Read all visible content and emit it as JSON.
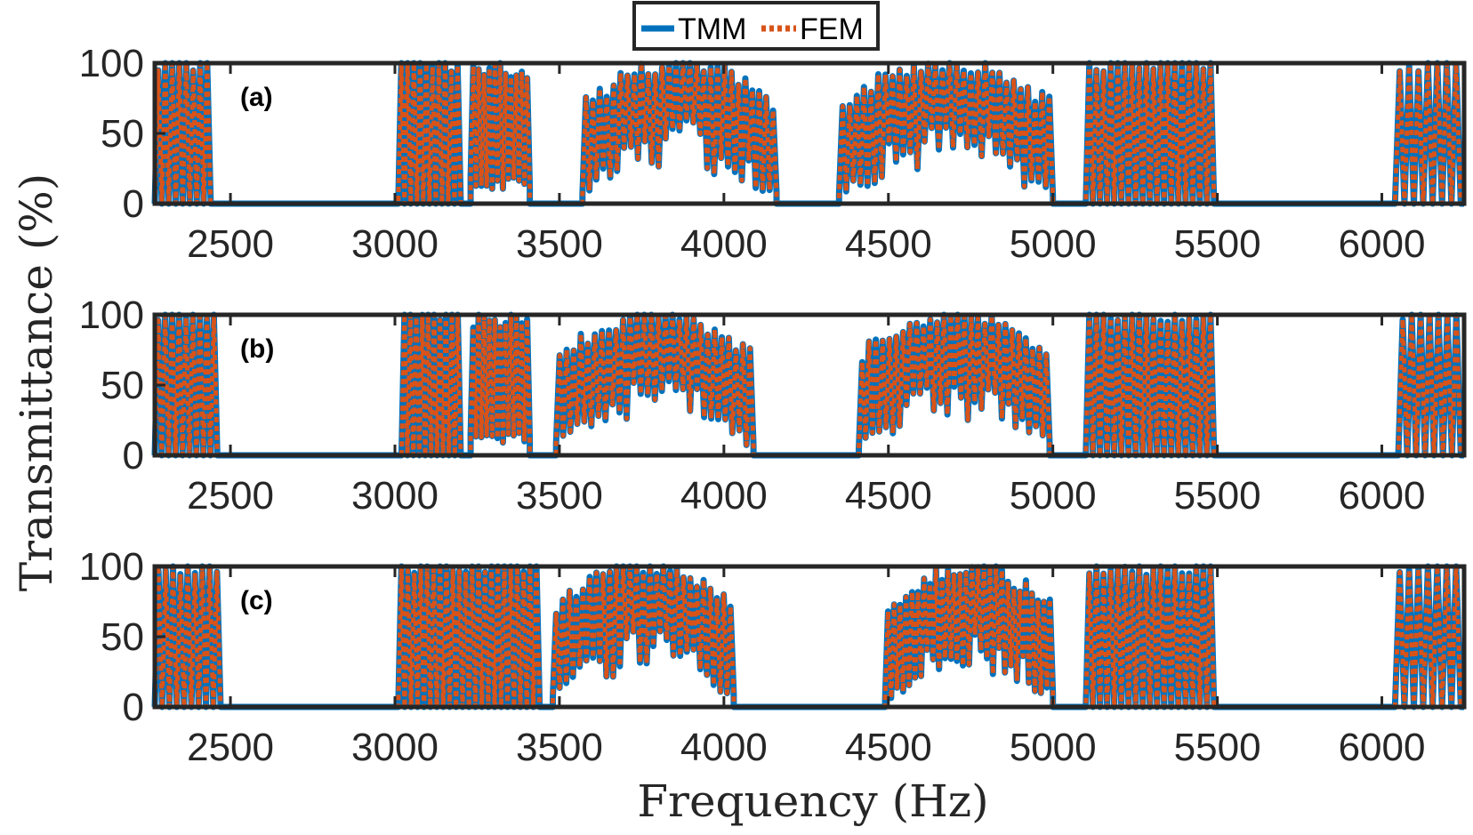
{
  "chart_data": {
    "type": "line",
    "xlabel": "Frequency (Hz)",
    "ylabel": "Transmittance (%)",
    "xlim": [
      2270,
      6250
    ],
    "ylim": [
      0,
      100
    ],
    "xticks": [
      2500,
      3000,
      3500,
      4000,
      4500,
      5000,
      5500,
      6000
    ],
    "yticks": [
      0,
      50,
      100
    ],
    "grid": false,
    "legend": {
      "placement": "top-center",
      "entries": [
        "TMM",
        "FEM"
      ]
    },
    "colors": {
      "TMM": "#0072BD",
      "FEM": "#D95319",
      "frame": "#262626"
    },
    "panels": [
      {
        "label": "(a)",
        "passbands": [
          {
            "x": [
              2270,
              2440
            ],
            "n": 8,
            "lo": 0,
            "hi": 100
          },
          {
            "x": [
              3010,
              3200
            ],
            "n": 10,
            "lo": 0,
            "hi": 100
          },
          {
            "x": [
              3230,
              3410
            ],
            "n": 11,
            "lo": 20,
            "hi": 95
          },
          {
            "x": [
              3570,
              4160
            ],
            "n": 28,
            "lo": 10,
            "hi": 100,
            "dome": true
          },
          {
            "x": [
              4350,
              5000
            ],
            "n": 30,
            "lo": 10,
            "hi": 100,
            "dome": true
          },
          {
            "x": [
              5100,
              5490
            ],
            "n": 18,
            "lo": 0,
            "hi": 100
          },
          {
            "x": [
              6040,
              6240
            ],
            "n": 7,
            "lo": 0,
            "hi": 100
          }
        ]
      },
      {
        "label": "(b)",
        "passbands": [
          {
            "x": [
              2270,
              2460
            ],
            "n": 9,
            "lo": 0,
            "hi": 100
          },
          {
            "x": [
              3020,
              3200
            ],
            "n": 10,
            "lo": 0,
            "hi": 100
          },
          {
            "x": [
              3230,
              3410
            ],
            "n": 11,
            "lo": 20,
            "hi": 95
          },
          {
            "x": [
              3490,
              4090
            ],
            "n": 28,
            "lo": 10,
            "hi": 100,
            "dome": true
          },
          {
            "x": [
              4410,
              4990
            ],
            "n": 28,
            "lo": 10,
            "hi": 100,
            "dome": true
          },
          {
            "x": [
              5100,
              5490
            ],
            "n": 18,
            "lo": 0,
            "hi": 100
          },
          {
            "x": [
              6050,
              6240
            ],
            "n": 7,
            "lo": 0,
            "hi": 100
          }
        ]
      },
      {
        "label": "(c)",
        "passbands": [
          {
            "x": [
              2270,
              2470
            ],
            "n": 9,
            "lo": 0,
            "hi": 100
          },
          {
            "x": [
              3010,
              3440
            ],
            "n": 22,
            "lo": 0,
            "hi": 100
          },
          {
            "x": [
              3480,
              4030
            ],
            "n": 27,
            "lo": 10,
            "hi": 100,
            "dome": true
          },
          {
            "x": [
              4490,
              5000
            ],
            "n": 28,
            "lo": 10,
            "hi": 100,
            "dome": true
          },
          {
            "x": [
              5100,
              5490
            ],
            "n": 18,
            "lo": 0,
            "hi": 100
          },
          {
            "x": [
              6040,
              6240
            ],
            "n": 7,
            "lo": 0,
            "hi": 100
          }
        ]
      }
    ]
  }
}
